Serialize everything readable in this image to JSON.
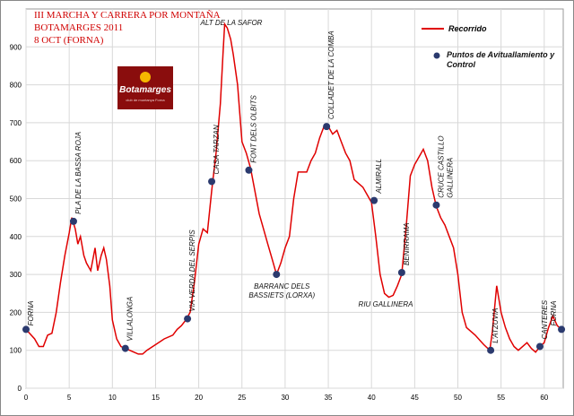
{
  "chart_data": {
    "type": "line",
    "title": [
      "III MARCHA Y CARRERA POR MONTAÑA",
      "BOTAMARGES 2011",
      "8 OCT (FORNA)"
    ],
    "logo": {
      "name": "Botamarges",
      "subtitle": "club de muntanya Forna"
    },
    "xlim": [
      0,
      62.2
    ],
    "xticks": [
      0,
      5,
      10,
      15,
      20,
      25,
      30,
      35,
      40,
      45,
      50,
      55,
      60
    ],
    "ylim": [
      0,
      1000
    ],
    "yticks": [
      0,
      100,
      200,
      300,
      400,
      500,
      600,
      700,
      800,
      900
    ],
    "grid": true,
    "series": [
      {
        "name": "Recorrido",
        "color": "#e00000",
        "x": [
          0,
          1,
          1.5,
          2,
          2.5,
          3,
          3.5,
          4,
          4.5,
          5,
          5.3,
          5.7,
          6,
          6.3,
          6.7,
          7,
          7.5,
          8,
          8.3,
          8.7,
          9,
          9.3,
          9.7,
          10,
          10.5,
          11,
          11.5,
          12,
          12.5,
          13,
          13.5,
          14,
          15,
          16,
          17,
          17.5,
          18,
          18.5,
          19,
          19.5,
          20,
          20.5,
          21,
          21.5,
          22,
          22.5,
          22.8,
          23,
          23.3,
          23.7,
          24,
          24.5,
          25,
          25.5,
          26,
          26.5,
          27,
          27.5,
          28,
          28.5,
          29,
          29.5,
          30,
          30.5,
          31,
          31.5,
          32,
          32.5,
          33,
          33.5,
          34,
          34.5,
          35,
          35.5,
          36,
          36.5,
          37,
          37.5,
          38,
          39,
          39.5,
          40,
          40.5,
          41,
          41.5,
          42,
          42.5,
          43,
          43.5,
          44,
          44.5,
          45,
          45.5,
          46,
          46.5,
          47,
          47.5,
          48,
          48.5,
          49,
          49.5,
          50,
          50.5,
          51,
          52,
          53,
          53.7,
          54,
          54.5,
          55,
          55.5,
          56,
          56.5,
          57,
          58,
          58.5,
          59,
          59.5,
          60,
          60.5,
          61,
          61.5,
          62
        ],
        "values": [
          155,
          130,
          110,
          110,
          140,
          145,
          200,
          280,
          350,
          410,
          450,
          420,
          380,
          400,
          350,
          330,
          310,
          370,
          310,
          350,
          370,
          340,
          270,
          180,
          130,
          110,
          105,
          100,
          95,
          90,
          90,
          100,
          115,
          130,
          140,
          155,
          165,
          180,
          200,
          280,
          380,
          420,
          410,
          520,
          620,
          750,
          880,
          960,
          950,
          920,
          880,
          800,
          650,
          620,
          580,
          520,
          460,
          420,
          380,
          340,
          300,
          330,
          370,
          400,
          500,
          570,
          570,
          570,
          600,
          620,
          660,
          690,
          690,
          670,
          680,
          650,
          620,
          600,
          550,
          530,
          510,
          490,
          400,
          300,
          250,
          240,
          245,
          270,
          300,
          420,
          560,
          590,
          610,
          630,
          600,
          530,
          480,
          450,
          430,
          400,
          370,
          300,
          200,
          160,
          140,
          115,
          100,
          150,
          270,
          200,
          160,
          130,
          110,
          100,
          120,
          105,
          95,
          110,
          120,
          160,
          190,
          165,
          155
        ]
      },
      {
        "name": "Puntos de Avituallamiento y Control",
        "color": "#2b3a6e",
        "x": [
          0,
          5.5,
          11.5,
          18.7,
          21.5,
          25.8,
          29,
          34.8,
          40.3,
          43.5,
          47.5,
          53.8,
          59.5,
          62
        ],
        "values": [
          155,
          440,
          105,
          183,
          545,
          575,
          300,
          690,
          495,
          305,
          483,
          100,
          110,
          155
        ],
        "labels": [
          "FORNA",
          "PLA DE LA BASSA ROJA",
          "VILLALONGA",
          "VIA VERDA DEL SERPIS",
          "CASA TARZAN",
          "FONT DELS OLBITS",
          [
            "BARRANC DELS",
            "BASSIETS (LORXA)"
          ],
          "COLLADET DE LA COMBA",
          "ALMIRALL",
          "BENIRRAMA",
          [
            "CRUCE CASTILLO",
            "GALLINERA"
          ],
          "L'ATZUVIA",
          "CANTERES",
          "FORNA"
        ]
      }
    ],
    "annotations": [
      "ALT DE LA SAFOR",
      "RIU GALLINERA"
    ]
  }
}
